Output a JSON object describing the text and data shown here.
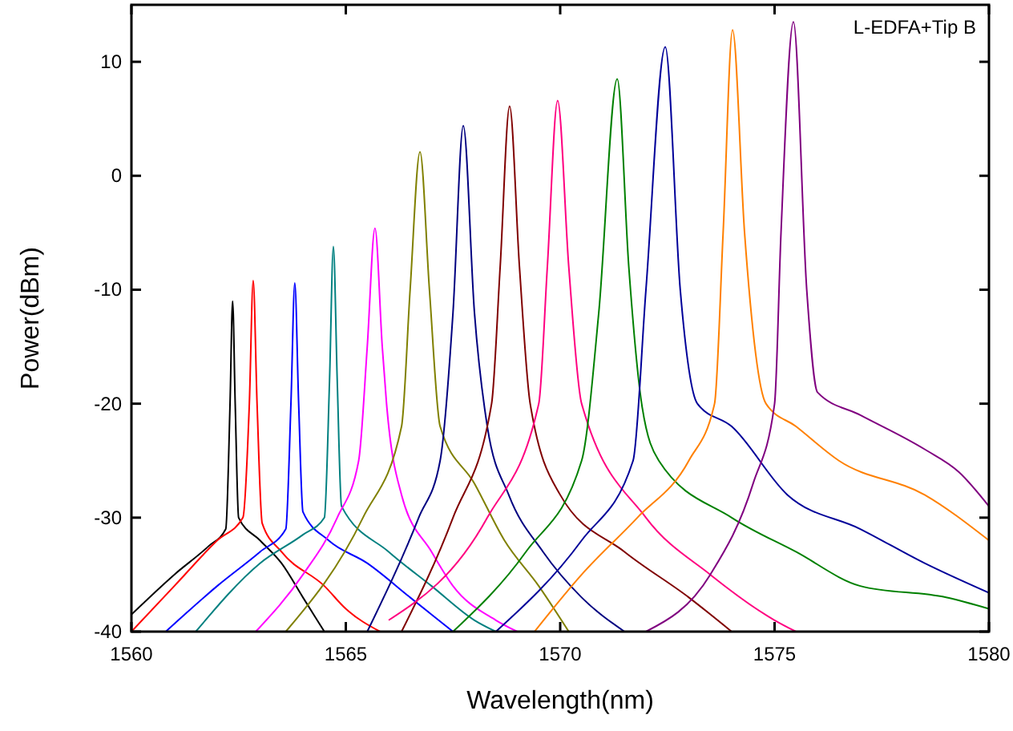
{
  "chart_data": {
    "type": "line",
    "xlabel": "Wavelength(nm)",
    "ylabel": "Power(dBm)",
    "annotations": [
      "L-EDFA+Tip B"
    ],
    "xlim": [
      1560,
      1580
    ],
    "xticks": [
      1560,
      1565,
      1570,
      1575,
      1580
    ],
    "ylim": [
      -40,
      15
    ],
    "yticks": [
      -40,
      -30,
      -20,
      -10,
      0,
      10
    ],
    "grid": false,
    "marker": "none",
    "line_style": "solid",
    "series": [
      {
        "color": "#000000",
        "x": [
          1560,
          1561,
          1561.8,
          1562.2,
          1562.3,
          1562.36,
          1562.42,
          1562.5,
          1563,
          1563.5,
          1564,
          1564.5
        ],
        "values": [
          -38.5,
          -35,
          -32.5,
          -31,
          -20,
          -11,
          -20,
          -30,
          -32,
          -34,
          -37,
          -40
        ]
      },
      {
        "color": "#ff0000",
        "x": [
          1560,
          1561,
          1562,
          1562.6,
          1562.75,
          1562.84,
          1562.93,
          1563.05,
          1563.5,
          1564.5,
          1565,
          1565.8
        ],
        "values": [
          -40,
          -36,
          -32,
          -30,
          -20,
          -9.2,
          -20,
          -30.5,
          -33,
          -36,
          -38,
          -40
        ]
      },
      {
        "color": "#0000ff",
        "x": [
          1560.8,
          1562,
          1563,
          1563.6,
          1563.72,
          1563.81,
          1563.9,
          1564,
          1564.6,
          1565.5,
          1566.5,
          1567.5
        ],
        "values": [
          -40,
          -36,
          -33,
          -31,
          -20,
          -9.4,
          -20,
          -29.5,
          -32,
          -34,
          -37,
          -40
        ]
      },
      {
        "color": "#008080",
        "x": [
          1561.5,
          1563,
          1564,
          1564.5,
          1564.62,
          1564.71,
          1564.8,
          1564.9,
          1566,
          1567,
          1568,
          1568.5
        ],
        "values": [
          -40,
          -34,
          -31.5,
          -30,
          -18,
          -6.2,
          -18,
          -29,
          -33,
          -36,
          -39,
          -40
        ]
      },
      {
        "color": "#ff00ff",
        "x": [
          1562.9,
          1564,
          1564.8,
          1565.3,
          1565.5,
          1565.68,
          1565.85,
          1565.95,
          1566.3,
          1567,
          1567.5,
          1568.5,
          1569
        ],
        "values": [
          -40,
          -35,
          -30,
          -25,
          -15,
          -4.6,
          -15,
          -20,
          -28,
          -33,
          -36,
          -39,
          -40
        ]
      },
      {
        "color": "#808000",
        "x": [
          1563.6,
          1565.4,
          1566.3,
          1566.5,
          1566.73,
          1566.95,
          1567.2,
          1568,
          1568.7,
          1569.5,
          1570.2
        ],
        "values": [
          -40,
          -30,
          -22,
          -10,
          2.1,
          -10,
          -22,
          -27,
          -32,
          -36,
          -40
        ]
      },
      {
        "color": "#000080",
        "x": [
          1565.5,
          1566.7,
          1567.2,
          1567.5,
          1567.74,
          1568,
          1568.3,
          1568.8,
          1569.6,
          1570.5,
          1571.5
        ],
        "values": [
          -40,
          -30,
          -25,
          -12,
          4.4,
          -12,
          -22,
          -28,
          -33,
          -37,
          -40
        ]
      },
      {
        "color": "#800000",
        "x": [
          1566.3,
          1567.5,
          1568.4,
          1568.6,
          1568.82,
          1569.05,
          1569.3,
          1570,
          1571.5,
          1573,
          1574
        ],
        "values": [
          -40,
          -30,
          -20,
          -8,
          6.1,
          -8,
          -20,
          -28,
          -33,
          -37,
          -40
        ]
      },
      {
        "color": "#ff0080",
        "x": [
          1566,
          1568.3,
          1569.5,
          1569.7,
          1569.94,
          1570.2,
          1570.5,
          1572,
          1573.5,
          1575,
          1575.5
        ],
        "values": [
          -39,
          -30,
          -20,
          -8,
          6.6,
          -8,
          -20,
          -30,
          -35,
          -39,
          -40
        ]
      },
      {
        "color": "#008000",
        "x": [
          1567.5,
          1569.2,
          1570.5,
          1570.9,
          1571.33,
          1571.6,
          1571.9,
          1572.3,
          1574,
          1575.5,
          1577,
          1579,
          1580
        ],
        "values": [
          -40,
          -33,
          -25,
          -12,
          8.5,
          -8,
          -20,
          -25,
          -30,
          -33,
          -36,
          -37,
          -38
        ]
      },
      {
        "color": "#000099",
        "x": [
          1568.5,
          1570.5,
          1571.7,
          1572,
          1572.45,
          1572.8,
          1573.2,
          1574,
          1575.3,
          1577,
          1578.5,
          1580
        ],
        "values": [
          -40,
          -32,
          -25,
          -10,
          11.3,
          -10,
          -20,
          -22,
          -28,
          -31,
          -34,
          -36.6
        ]
      },
      {
        "color": "#ff8000",
        "x": [
          1569.4,
          1570.5,
          1571.8,
          1573,
          1573.6,
          1573.8,
          1574.02,
          1574.3,
          1574.8,
          1575.5,
          1576.5,
          1578.5,
          1580
        ],
        "values": [
          -40,
          -35,
          -30,
          -25,
          -20,
          -5,
          12.8,
          -5,
          -20,
          -22,
          -25,
          -28,
          -32
        ]
      },
      {
        "color": "#800080",
        "x": [
          1572,
          1573.5,
          1574.5,
          1575,
          1575.15,
          1575.44,
          1575.75,
          1576,
          1577,
          1578.5,
          1579.3,
          1580
        ],
        "values": [
          -40,
          -35,
          -27,
          -20,
          -5,
          13.5,
          -10,
          -19,
          -21,
          -24,
          -26,
          -29
        ]
      }
    ]
  }
}
